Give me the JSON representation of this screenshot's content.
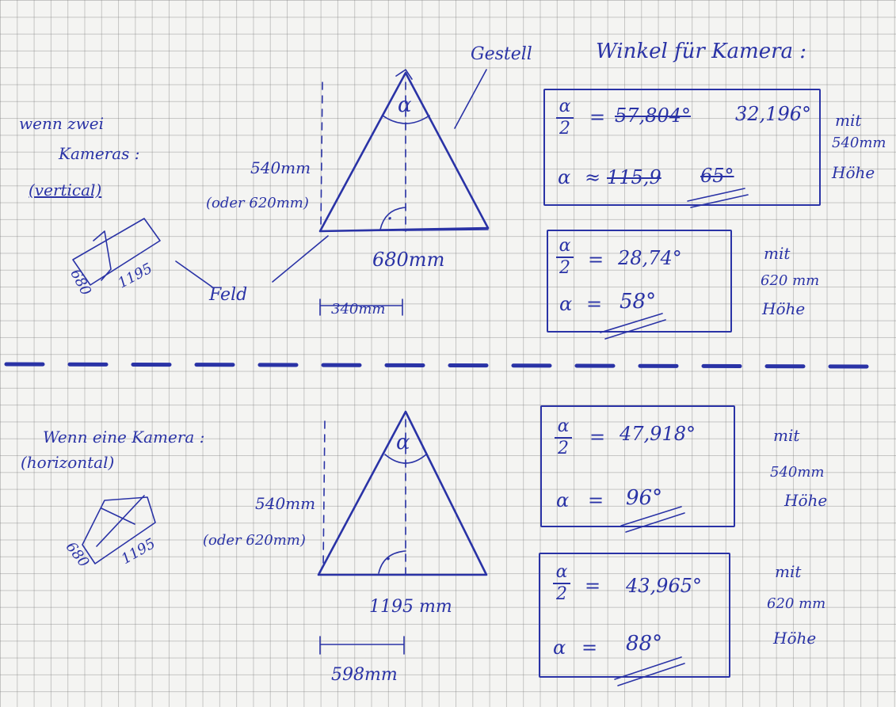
{
  "heading": "Winkel für Kamera :",
  "labels": {
    "gestell": "Gestell",
    "feld": "Feld",
    "alpha": "α",
    "right_angle_dot": "·"
  },
  "top": {
    "note_line1": "wenn zwei",
    "note_line2": "Kameras :",
    "note_line3": "(vertical)",
    "camera_width": "680",
    "camera_length": "1195",
    "height_label": "540mm",
    "height_alt": "(oder 620mm)",
    "base_label": "680mm",
    "half_base": "340mm",
    "box1": {
      "half_sign": "α",
      "half_den": "2",
      "eq": "=",
      "struck_value": "57,804°",
      "value": "32,196°",
      "alpha": "α",
      "approx": "≈",
      "struck_alpha": "115,9",
      "alpha_value": "65°",
      "side_line1": "mit",
      "side_line2": "540mm",
      "side_line3": "Höhe"
    },
    "box2": {
      "half_sign": "α",
      "half_den": "2",
      "eq": "=",
      "value": "28,74°",
      "alpha": "α",
      "alpha_eq": "=",
      "alpha_value": "58°",
      "side_line1": "mit",
      "side_line2": "620 mm",
      "side_line3": "Höhe"
    }
  },
  "bottom": {
    "note_line1": "Wenn eine Kamera :",
    "note_line2": "(horizontal)",
    "camera_width": "680",
    "camera_length": "1195",
    "height_label": "540mm",
    "height_alt": "(oder 620mm)",
    "base_label": "1195 mm",
    "half_base": "598mm",
    "box3": {
      "half_sign": "α",
      "half_den": "2",
      "eq": "=",
      "value": "47,918°",
      "alpha": "α",
      "alpha_eq": "=",
      "alpha_value": "96°",
      "side_line1": "mit",
      "side_line2": "540mm",
      "side_line3": "Höhe"
    },
    "box4": {
      "half_sign": "α",
      "half_den": "2",
      "eq": "=",
      "value": "43,965°",
      "alpha": "α",
      "alpha_eq": "=",
      "alpha_value": "88°",
      "side_line1": "mit",
      "side_line2": "620 mm",
      "side_line3": "Höhe"
    }
  }
}
